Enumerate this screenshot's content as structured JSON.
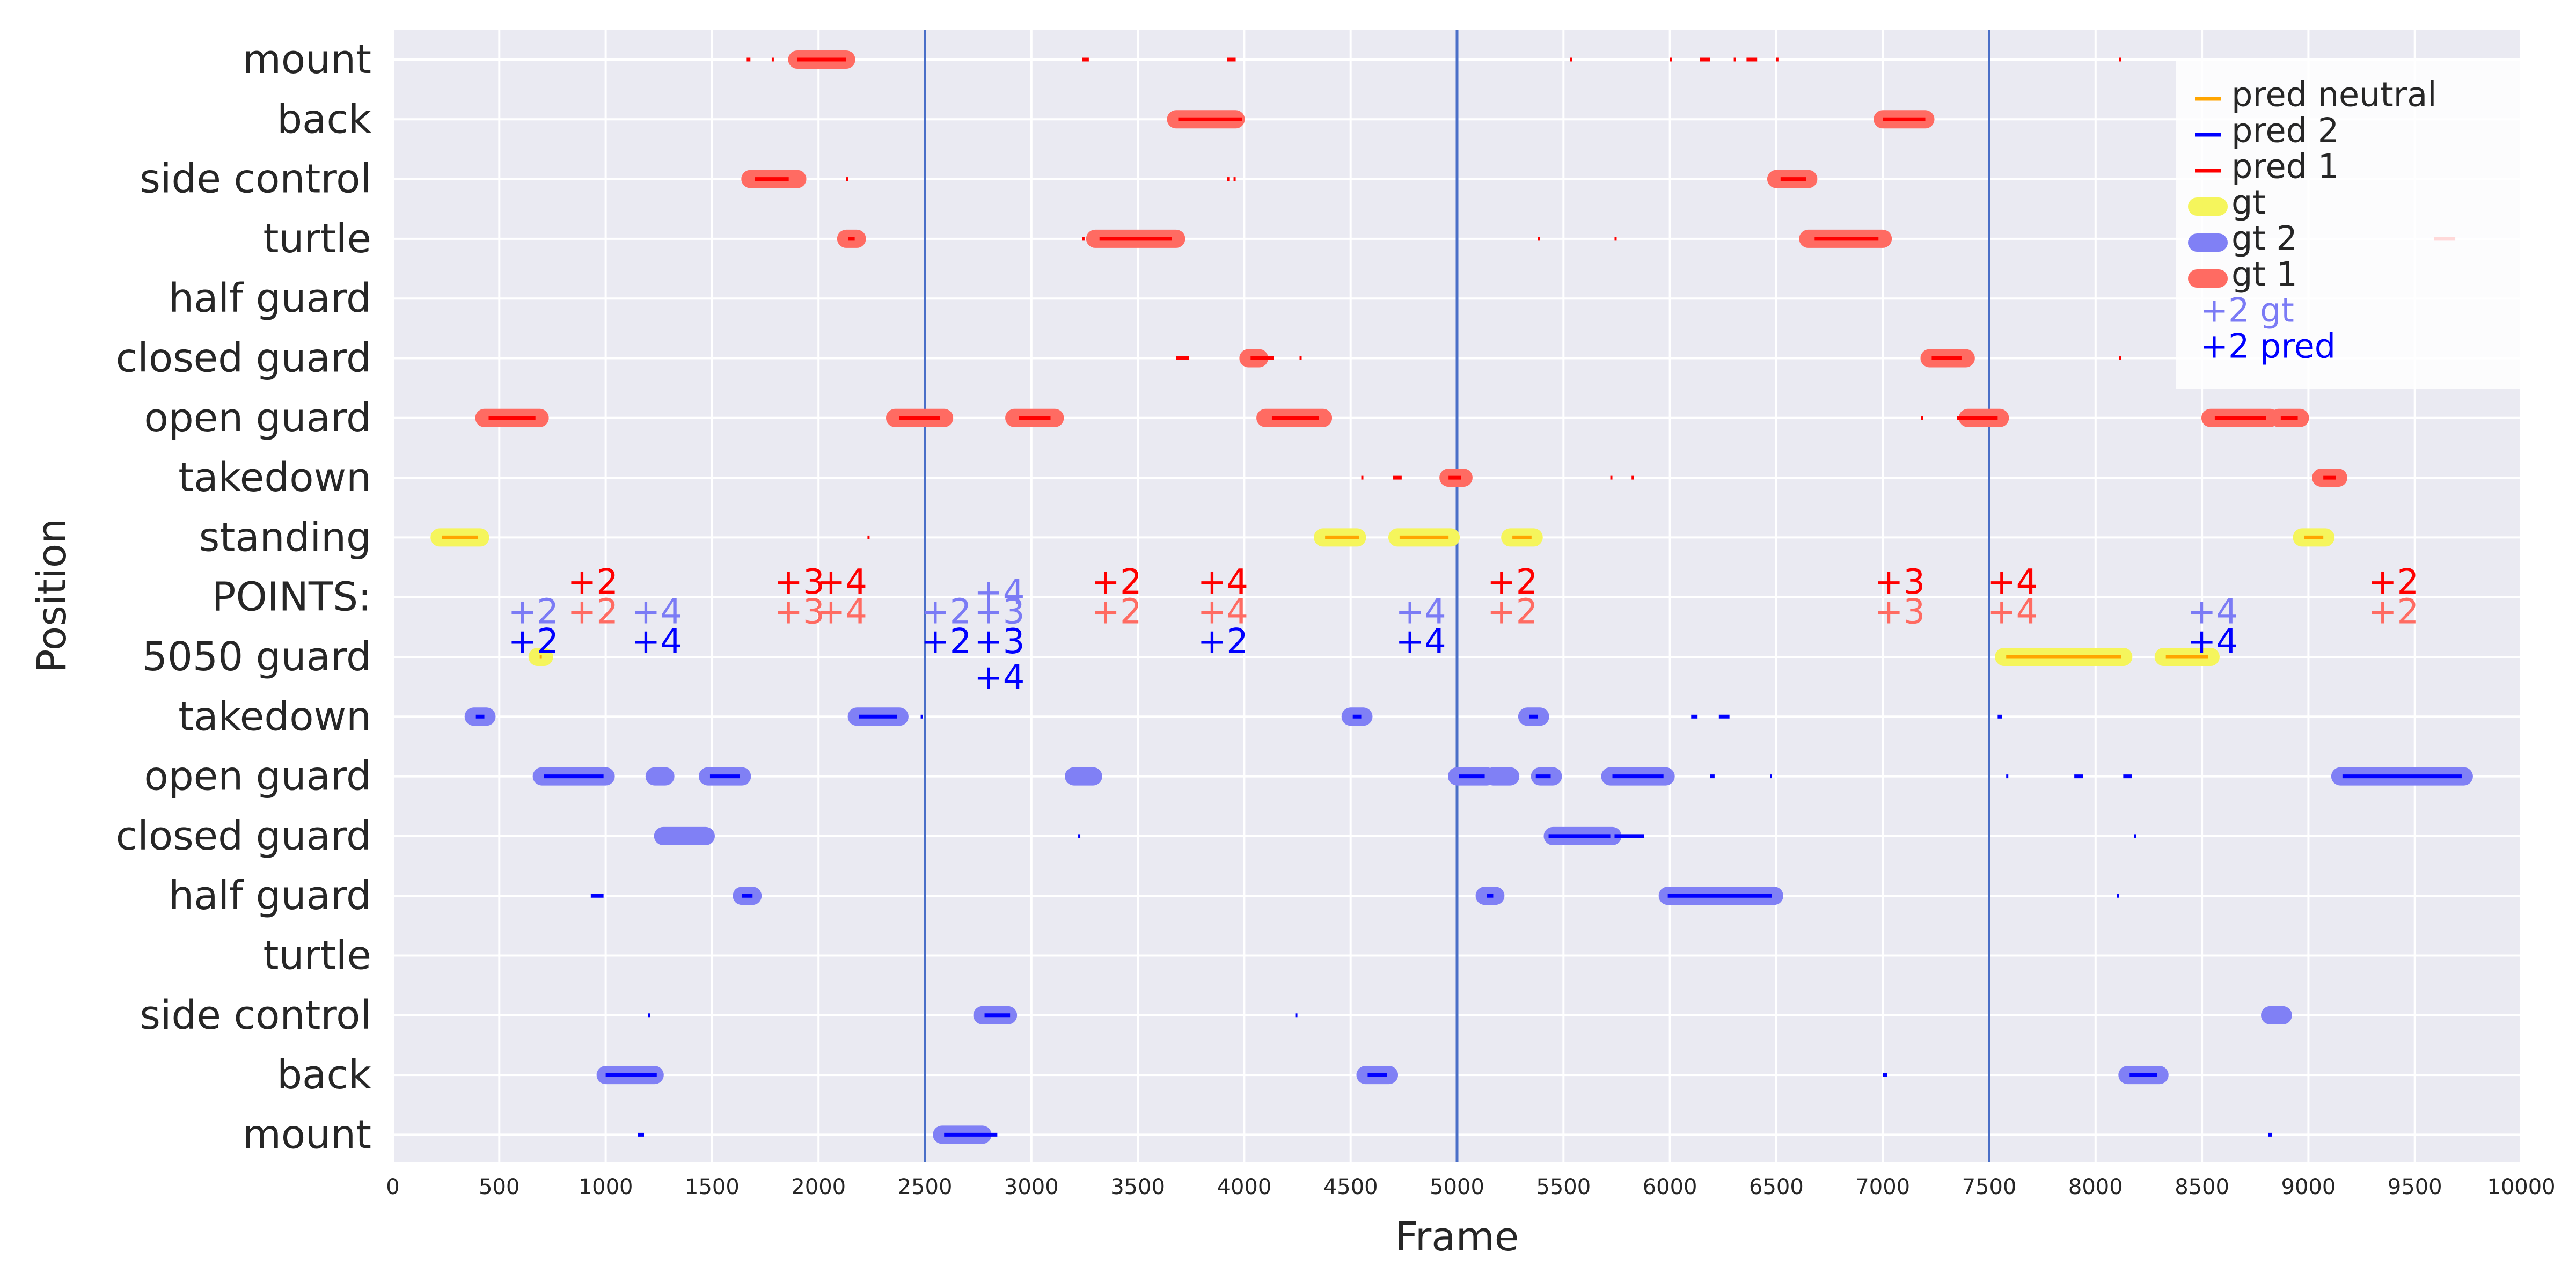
{
  "chart_data": {
    "type": "scatter",
    "xlabel": "Frame",
    "ylabel": "Position",
    "xlim": [
      0,
      10000
    ],
    "x_ticks": [
      0,
      500,
      1000,
      1500,
      2000,
      2500,
      3000,
      3500,
      4000,
      4500,
      5000,
      5500,
      6000,
      6500,
      7000,
      7500,
      8000,
      8500,
      9000,
      9500,
      10000
    ],
    "grid": true,
    "legend_position": "top-right",
    "y_categories": [
      "mount",
      "back",
      "side control",
      "turtle",
      "half guard",
      "closed guard",
      "open guard",
      "takedown",
      "standing",
      "POINTS:",
      "5050 guard",
      "takedown",
      "open guard",
      "closed guard",
      "half guard",
      "turtle",
      "side control",
      "back",
      "mount"
    ],
    "vertical_lines": [
      2500,
      5000,
      7500
    ],
    "legend": [
      {
        "label": "pred neutral",
        "marker": "line",
        "color": "#ffa500"
      },
      {
        "label": "pred 2",
        "marker": "line",
        "color": "#0000ff"
      },
      {
        "label": "pred 1",
        "marker": "line",
        "color": "#ff0000"
      },
      {
        "label": "gt",
        "marker": "band",
        "color": "#f5f55c"
      },
      {
        "label": "gt 2",
        "marker": "band",
        "color": "#8080f5"
      },
      {
        "label": "gt 1",
        "marker": "band",
        "color": "#ff6b62"
      },
      {
        "label": "+2 gt",
        "marker": "text",
        "color": "#7b7bf5"
      },
      {
        "label": "+2 pred",
        "marker": "text",
        "color": "#0000ff"
      }
    ],
    "series": [
      {
        "name": "gt 1",
        "color": "#ff6b62",
        "intervals": [
          {
            "row": 0,
            "start": 1900,
            "end": 2130
          },
          {
            "row": 1,
            "start": 3680,
            "end": 3960
          },
          {
            "row": 1,
            "start": 7000,
            "end": 7200
          },
          {
            "row": 2,
            "start": 1680,
            "end": 1900
          },
          {
            "row": 2,
            "start": 6500,
            "end": 6650
          },
          {
            "row": 3,
            "start": 2130,
            "end": 2180
          },
          {
            "row": 3,
            "start": 3300,
            "end": 3680
          },
          {
            "row": 3,
            "start": 6650,
            "end": 7000
          },
          {
            "row": 5,
            "start": 4020,
            "end": 4070
          },
          {
            "row": 5,
            "start": 7220,
            "end": 7390
          },
          {
            "row": 6,
            "start": 430,
            "end": 690
          },
          {
            "row": 6,
            "start": 2360,
            "end": 2590
          },
          {
            "row": 6,
            "start": 2920,
            "end": 3110
          },
          {
            "row": 6,
            "start": 4100,
            "end": 4370
          },
          {
            "row": 6,
            "start": 7400,
            "end": 7550
          },
          {
            "row": 6,
            "start": 8540,
            "end": 8820
          },
          {
            "row": 6,
            "start": 8860,
            "end": 8960
          },
          {
            "row": 7,
            "start": 4960,
            "end": 5030
          },
          {
            "row": 7,
            "start": 9060,
            "end": 9140
          }
        ]
      },
      {
        "name": "gt",
        "color": "#f5f55c",
        "intervals": [
          {
            "row": 8,
            "start": 220,
            "end": 410
          },
          {
            "row": 8,
            "start": 4370,
            "end": 4530
          },
          {
            "row": 8,
            "start": 4720,
            "end": 4970
          },
          {
            "row": 8,
            "start": 5250,
            "end": 5360
          },
          {
            "row": 8,
            "start": 8970,
            "end": 9080
          },
          {
            "row": 10,
            "start": 680,
            "end": 710
          },
          {
            "row": 10,
            "start": 7570,
            "end": 7910
          },
          {
            "row": 10,
            "start": 7910,
            "end": 8130
          },
          {
            "row": 10,
            "start": 8320,
            "end": 8540
          }
        ]
      },
      {
        "name": "gt 2",
        "color": "#8080f5",
        "intervals": [
          {
            "row": 11,
            "start": 380,
            "end": 440
          },
          {
            "row": 11,
            "start": 2180,
            "end": 2380
          },
          {
            "row": 11,
            "start": 4500,
            "end": 4560
          },
          {
            "row": 11,
            "start": 5330,
            "end": 5390
          },
          {
            "row": 12,
            "start": 700,
            "end": 1000
          },
          {
            "row": 12,
            "start": 1230,
            "end": 1280
          },
          {
            "row": 12,
            "start": 1480,
            "end": 1640
          },
          {
            "row": 12,
            "start": 3200,
            "end": 3290
          },
          {
            "row": 12,
            "start": 5000,
            "end": 5140
          },
          {
            "row": 12,
            "start": 5170,
            "end": 5250
          },
          {
            "row": 12,
            "start": 5390,
            "end": 5450
          },
          {
            "row": 12,
            "start": 5720,
            "end": 5980
          },
          {
            "row": 12,
            "start": 9150,
            "end": 9730
          },
          {
            "row": 13,
            "start": 1270,
            "end": 1470
          },
          {
            "row": 13,
            "start": 5450,
            "end": 5730
          },
          {
            "row": 14,
            "start": 1640,
            "end": 1690
          },
          {
            "row": 14,
            "start": 5130,
            "end": 5180
          },
          {
            "row": 14,
            "start": 5990,
            "end": 6490
          },
          {
            "row": 16,
            "start": 2770,
            "end": 2890
          },
          {
            "row": 16,
            "start": 8820,
            "end": 8880
          },
          {
            "row": 17,
            "start": 1000,
            "end": 1230
          },
          {
            "row": 17,
            "start": 4570,
            "end": 4680
          },
          {
            "row": 17,
            "start": 8150,
            "end": 8300
          },
          {
            "row": 18,
            "start": 2580,
            "end": 2770
          }
        ]
      },
      {
        "name": "pred 1",
        "color": "#ff0000",
        "intervals": [
          {
            "row": 0,
            "start": 1660,
            "end": 1680
          },
          {
            "row": 0,
            "start": 1780,
            "end": 1790
          },
          {
            "row": 0,
            "start": 1900,
            "end": 2130
          },
          {
            "row": 0,
            "start": 3240,
            "end": 3270
          },
          {
            "row": 0,
            "start": 3920,
            "end": 3960
          },
          {
            "row": 0,
            "start": 5530,
            "end": 5540
          },
          {
            "row": 0,
            "start": 6000,
            "end": 6010
          },
          {
            "row": 0,
            "start": 6140,
            "end": 6190
          },
          {
            "row": 0,
            "start": 6300,
            "end": 6310
          },
          {
            "row": 0,
            "start": 6360,
            "end": 6410
          },
          {
            "row": 0,
            "start": 6500,
            "end": 6510
          },
          {
            "row": 0,
            "start": 8110,
            "end": 8120
          },
          {
            "row": 1,
            "start": 3690,
            "end": 3990
          },
          {
            "row": 1,
            "start": 7000,
            "end": 7200
          },
          {
            "row": 2,
            "start": 1700,
            "end": 1860
          },
          {
            "row": 2,
            "start": 2130,
            "end": 2140
          },
          {
            "row": 2,
            "start": 3920,
            "end": 3930
          },
          {
            "row": 2,
            "start": 3950,
            "end": 3960
          },
          {
            "row": 2,
            "start": 6520,
            "end": 6640
          },
          {
            "row": 3,
            "start": 2140,
            "end": 2170
          },
          {
            "row": 3,
            "start": 3240,
            "end": 3250
          },
          {
            "row": 3,
            "start": 3320,
            "end": 3660
          },
          {
            "row": 3,
            "start": 5380,
            "end": 5390
          },
          {
            "row": 3,
            "start": 5740,
            "end": 5750
          },
          {
            "row": 3,
            "start": 6680,
            "end": 6980
          },
          {
            "row": 3,
            "start": 9590,
            "end": 9690
          },
          {
            "row": 5,
            "start": 3680,
            "end": 3740
          },
          {
            "row": 5,
            "start": 4030,
            "end": 4140
          },
          {
            "row": 5,
            "start": 4260,
            "end": 4270
          },
          {
            "row": 5,
            "start": 7230,
            "end": 7370
          },
          {
            "row": 5,
            "start": 8110,
            "end": 8120
          },
          {
            "row": 6,
            "start": 450,
            "end": 670
          },
          {
            "row": 6,
            "start": 2380,
            "end": 2570
          },
          {
            "row": 6,
            "start": 2940,
            "end": 3090
          },
          {
            "row": 6,
            "start": 4130,
            "end": 4350
          },
          {
            "row": 6,
            "start": 7180,
            "end": 7190
          },
          {
            "row": 6,
            "start": 7350,
            "end": 7540
          },
          {
            "row": 6,
            "start": 8560,
            "end": 8800
          },
          {
            "row": 6,
            "start": 8870,
            "end": 8950
          },
          {
            "row": 7,
            "start": 4550,
            "end": 4560
          },
          {
            "row": 7,
            "start": 4700,
            "end": 4740
          },
          {
            "row": 7,
            "start": 4960,
            "end": 5020
          },
          {
            "row": 7,
            "start": 5720,
            "end": 5730
          },
          {
            "row": 7,
            "start": 5820,
            "end": 5830
          },
          {
            "row": 7,
            "start": 9070,
            "end": 9130
          },
          {
            "row": 8,
            "start": 2230,
            "end": 2240
          }
        ]
      },
      {
        "name": "pred neutral",
        "color": "#ffa500",
        "intervals": [
          {
            "row": 8,
            "start": 230,
            "end": 400
          },
          {
            "row": 8,
            "start": 4380,
            "end": 4540
          },
          {
            "row": 8,
            "start": 4730,
            "end": 4960
          },
          {
            "row": 8,
            "start": 5260,
            "end": 5350
          },
          {
            "row": 8,
            "start": 8980,
            "end": 9070
          },
          {
            "row": 10,
            "start": 690,
            "end": 700
          },
          {
            "row": 10,
            "start": 7580,
            "end": 8120
          },
          {
            "row": 10,
            "start": 8330,
            "end": 8530
          }
        ]
      },
      {
        "name": "pred 2",
        "color": "#0000ff",
        "intervals": [
          {
            "row": 11,
            "start": 390,
            "end": 430
          },
          {
            "row": 11,
            "start": 2190,
            "end": 2370
          },
          {
            "row": 11,
            "start": 2480,
            "end": 2490
          },
          {
            "row": 11,
            "start": 4510,
            "end": 4550
          },
          {
            "row": 11,
            "start": 5340,
            "end": 5380
          },
          {
            "row": 11,
            "start": 6100,
            "end": 6130
          },
          {
            "row": 11,
            "start": 6230,
            "end": 6280
          },
          {
            "row": 11,
            "start": 7540,
            "end": 7560
          },
          {
            "row": 12,
            "start": 710,
            "end": 990
          },
          {
            "row": 12,
            "start": 1490,
            "end": 1630
          },
          {
            "row": 12,
            "start": 5010,
            "end": 5130
          },
          {
            "row": 12,
            "start": 5370,
            "end": 5440
          },
          {
            "row": 12,
            "start": 5730,
            "end": 5970
          },
          {
            "row": 12,
            "start": 6190,
            "end": 6210
          },
          {
            "row": 12,
            "start": 6470,
            "end": 6480
          },
          {
            "row": 12,
            "start": 7580,
            "end": 7590
          },
          {
            "row": 12,
            "start": 7900,
            "end": 7940
          },
          {
            "row": 12,
            "start": 8130,
            "end": 8170
          },
          {
            "row": 12,
            "start": 9160,
            "end": 9720
          },
          {
            "row": 13,
            "start": 3220,
            "end": 3230
          },
          {
            "row": 13,
            "start": 5430,
            "end": 5720
          },
          {
            "row": 13,
            "start": 5740,
            "end": 5880
          },
          {
            "row": 13,
            "start": 8180,
            "end": 8190
          },
          {
            "row": 14,
            "start": 930,
            "end": 990
          },
          {
            "row": 14,
            "start": 1640,
            "end": 1690
          },
          {
            "row": 14,
            "start": 5140,
            "end": 5170
          },
          {
            "row": 14,
            "start": 5990,
            "end": 6480
          },
          {
            "row": 14,
            "start": 8100,
            "end": 8110
          },
          {
            "row": 16,
            "start": 1200,
            "end": 1210
          },
          {
            "row": 16,
            "start": 2780,
            "end": 2900
          },
          {
            "row": 16,
            "start": 4240,
            "end": 4250
          },
          {
            "row": 17,
            "start": 1000,
            "end": 1240
          },
          {
            "row": 17,
            "start": 4580,
            "end": 4670
          },
          {
            "row": 17,
            "start": 7000,
            "end": 7020
          },
          {
            "row": 17,
            "start": 8160,
            "end": 8290
          },
          {
            "row": 18,
            "start": 1150,
            "end": 1180
          },
          {
            "row": 18,
            "start": 2590,
            "end": 2840
          },
          {
            "row": 18,
            "start": 8810,
            "end": 8830
          }
        ]
      }
    ],
    "annotations": [
      {
        "text": "+2",
        "x": 940,
        "y": 8.75,
        "color": "#ff0000"
      },
      {
        "text": "+3",
        "x": 1910,
        "y": 8.75,
        "color": "#ff0000"
      },
      {
        "text": "+4",
        "x": 2110,
        "y": 8.75,
        "color": "#ff0000"
      },
      {
        "text": "+2",
        "x": 3400,
        "y": 8.75,
        "color": "#ff0000"
      },
      {
        "text": "+4",
        "x": 3900,
        "y": 8.75,
        "color": "#ff0000"
      },
      {
        "text": "+2",
        "x": 5260,
        "y": 8.75,
        "color": "#ff0000"
      },
      {
        "text": "+3",
        "x": 7080,
        "y": 8.75,
        "color": "#ff0000"
      },
      {
        "text": "+4",
        "x": 7610,
        "y": 8.75,
        "color": "#ff0000"
      },
      {
        "text": "+2",
        "x": 9400,
        "y": 8.75,
        "color": "#ff0000"
      },
      {
        "text": "+4",
        "x": 2850,
        "y": 8.92,
        "color": "#7b7bf5"
      },
      {
        "text": "+2",
        "x": 660,
        "y": 9.25,
        "color": "#7b7bf5"
      },
      {
        "text": "+2",
        "x": 940,
        "y": 9.25,
        "color": "#ff6b62"
      },
      {
        "text": "+4",
        "x": 1240,
        "y": 9.25,
        "color": "#7b7bf5"
      },
      {
        "text": "+3",
        "x": 1910,
        "y": 9.25,
        "color": "#ff6b62"
      },
      {
        "text": "+4",
        "x": 2110,
        "y": 9.25,
        "color": "#ff6b62"
      },
      {
        "text": "+2",
        "x": 2600,
        "y": 9.25,
        "color": "#7b7bf5"
      },
      {
        "text": "+3",
        "x": 2850,
        "y": 9.25,
        "color": "#7b7bf5"
      },
      {
        "text": "+2",
        "x": 3400,
        "y": 9.25,
        "color": "#ff6b62"
      },
      {
        "text": "+4",
        "x": 3900,
        "y": 9.25,
        "color": "#ff6b62"
      },
      {
        "text": "+4",
        "x": 4830,
        "y": 9.25,
        "color": "#7b7bf5"
      },
      {
        "text": "+2",
        "x": 5260,
        "y": 9.25,
        "color": "#ff6b62"
      },
      {
        "text": "+3",
        "x": 7080,
        "y": 9.25,
        "color": "#ff6b62"
      },
      {
        "text": "+4",
        "x": 7610,
        "y": 9.25,
        "color": "#ff6b62"
      },
      {
        "text": "+4",
        "x": 8550,
        "y": 9.25,
        "color": "#7b7bf5"
      },
      {
        "text": "+2",
        "x": 9400,
        "y": 9.25,
        "color": "#ff6b62"
      },
      {
        "text": "+2",
        "x": 660,
        "y": 9.75,
        "color": "#0000ff"
      },
      {
        "text": "+4",
        "x": 1240,
        "y": 9.75,
        "color": "#0000ff"
      },
      {
        "text": "+2",
        "x": 2600,
        "y": 9.75,
        "color": "#0000ff"
      },
      {
        "text": "+3",
        "x": 2850,
        "y": 9.75,
        "color": "#0000ff"
      },
      {
        "text": "+2",
        "x": 3900,
        "y": 9.75,
        "color": "#0000ff"
      },
      {
        "text": "+4",
        "x": 4830,
        "y": 9.75,
        "color": "#0000ff"
      },
      {
        "text": "+4",
        "x": 8550,
        "y": 9.75,
        "color": "#0000ff"
      },
      {
        "text": "+4",
        "x": 2850,
        "y": 10.35,
        "color": "#0000ff"
      }
    ]
  }
}
